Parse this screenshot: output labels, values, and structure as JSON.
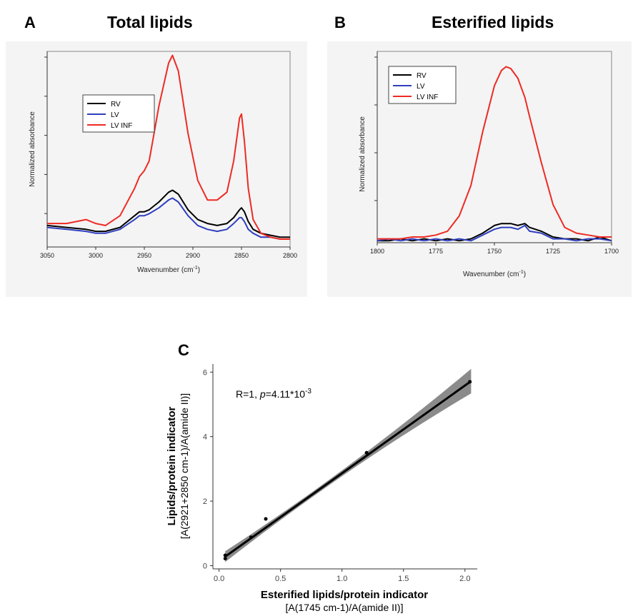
{
  "chart_data": [
    {
      "type": "line",
      "panel_letter": "A",
      "title": "Total lipids",
      "xlabel": "Wavenumber (cm",
      "xlabel_sup": "-1",
      "xlabel_tail": ")",
      "ylabel": "Normalized absorbance",
      "xlim": [
        3050,
        2800
      ],
      "ylim": [
        0,
        1
      ],
      "x_reversed": true,
      "xticks": [
        3050,
        3000,
        2950,
        2900,
        2850,
        2800
      ],
      "legend_position": "upper-left",
      "x": [
        3050,
        3030,
        3010,
        3000,
        2990,
        2975,
        2960,
        2955,
        2950,
        2945,
        2935,
        2925,
        2921,
        2915,
        2905,
        2895,
        2885,
        2875,
        2865,
        2858,
        2852,
        2850,
        2847,
        2843,
        2838,
        2830,
        2820,
        2810,
        2800
      ],
      "series": [
        {
          "name": "RV",
          "color": "#000000",
          "values": [
            0.11,
            0.1,
            0.09,
            0.08,
            0.08,
            0.1,
            0.16,
            0.18,
            0.18,
            0.19,
            0.23,
            0.28,
            0.29,
            0.27,
            0.19,
            0.14,
            0.12,
            0.11,
            0.12,
            0.15,
            0.19,
            0.2,
            0.18,
            0.13,
            0.09,
            0.07,
            0.06,
            0.05,
            0.05
          ]
        },
        {
          "name": "LV",
          "color": "#2f3fbf",
          "values": [
            0.1,
            0.09,
            0.08,
            0.07,
            0.07,
            0.09,
            0.14,
            0.16,
            0.16,
            0.17,
            0.2,
            0.24,
            0.25,
            0.23,
            0.16,
            0.11,
            0.09,
            0.08,
            0.09,
            0.12,
            0.15,
            0.15,
            0.13,
            0.09,
            0.07,
            0.05,
            0.05,
            0.04,
            0.04
          ]
        },
        {
          "name": "LV INF",
          "color": "#ee2a24",
          "values": [
            0.12,
            0.12,
            0.14,
            0.12,
            0.11,
            0.16,
            0.3,
            0.36,
            0.39,
            0.44,
            0.72,
            0.94,
            0.98,
            0.9,
            0.58,
            0.34,
            0.24,
            0.24,
            0.28,
            0.44,
            0.66,
            0.68,
            0.54,
            0.3,
            0.14,
            0.07,
            0.05,
            0.04,
            0.04
          ]
        }
      ]
    },
    {
      "type": "line",
      "panel_letter": "B",
      "title": "Esterified lipids",
      "xlabel": "Wavenumber (cm",
      "xlabel_sup": "-1",
      "xlabel_tail": ")",
      "ylabel": "Normalized absorbance",
      "xlim": [
        1800,
        1700
      ],
      "ylim": [
        0,
        1
      ],
      "x_reversed": true,
      "xticks": [
        1800,
        1775,
        1750,
        1725,
        1700
      ],
      "legend_position": "upper-left",
      "x": [
        1800,
        1795,
        1790,
        1785,
        1780,
        1775,
        1770,
        1765,
        1760,
        1755,
        1750,
        1747,
        1745,
        1743,
        1740,
        1737,
        1735,
        1730,
        1725,
        1720,
        1715,
        1710,
        1705,
        1700
      ],
      "series": [
        {
          "name": "RV",
          "color": "#000000",
          "values": [
            0.01,
            0.01,
            0.02,
            0.01,
            0.02,
            0.01,
            0.02,
            0.01,
            0.02,
            0.05,
            0.09,
            0.1,
            0.1,
            0.1,
            0.09,
            0.1,
            0.08,
            0.06,
            0.03,
            0.02,
            0.02,
            0.01,
            0.03,
            0.01
          ]
        },
        {
          "name": "LV",
          "color": "#2f3fbf",
          "values": [
            0.01,
            0.02,
            0.01,
            0.02,
            0.01,
            0.02,
            0.01,
            0.02,
            0.01,
            0.04,
            0.07,
            0.08,
            0.08,
            0.08,
            0.07,
            0.09,
            0.06,
            0.05,
            0.02,
            0.02,
            0.01,
            0.02,
            0.02,
            0.01
          ]
        },
        {
          "name": "LV INF",
          "color": "#ee2a24",
          "values": [
            0.02,
            0.02,
            0.02,
            0.03,
            0.03,
            0.04,
            0.06,
            0.14,
            0.3,
            0.58,
            0.82,
            0.9,
            0.92,
            0.91,
            0.86,
            0.76,
            0.66,
            0.42,
            0.2,
            0.08,
            0.05,
            0.04,
            0.03,
            0.03
          ]
        }
      ]
    },
    {
      "type": "scatter",
      "panel_letter": "C",
      "xlabel": "Esterified lipids/protein indicator",
      "xlabel_sub": "[A(1745 cm-1)/A(amide II)]",
      "ylabel": "Lipids/protein indicator",
      "ylabel_sub": "[A(2921+2850 cm-1)/A(amide II)]",
      "annotation_prefix": "R=1, ",
      "annotation_p": "p",
      "annotation_value": "=4.11*10",
      "annotation_exp": "-3",
      "xlim": [
        -0.05,
        2.1
      ],
      "ylim": [
        -0.1,
        6.25
      ],
      "xticks": [
        "0.0",
        "0.5",
        "1.0",
        "1.5",
        "2.0"
      ],
      "yticks": [
        "0",
        "2",
        "4",
        "6"
      ],
      "points": [
        {
          "x": 0.05,
          "y": 0.22
        },
        {
          "x": 0.05,
          "y": 0.32
        },
        {
          "x": 0.26,
          "y": 0.88
        },
        {
          "x": 0.38,
          "y": 1.45
        },
        {
          "x": 1.2,
          "y": 3.5
        },
        {
          "x": 2.04,
          "y": 5.7
        }
      ],
      "fit_line": {
        "x": [
          0.05,
          2.05
        ],
        "y": [
          0.28,
          5.72
        ],
        "color": "#000000"
      },
      "confidence_band_color": "#777777"
    }
  ]
}
